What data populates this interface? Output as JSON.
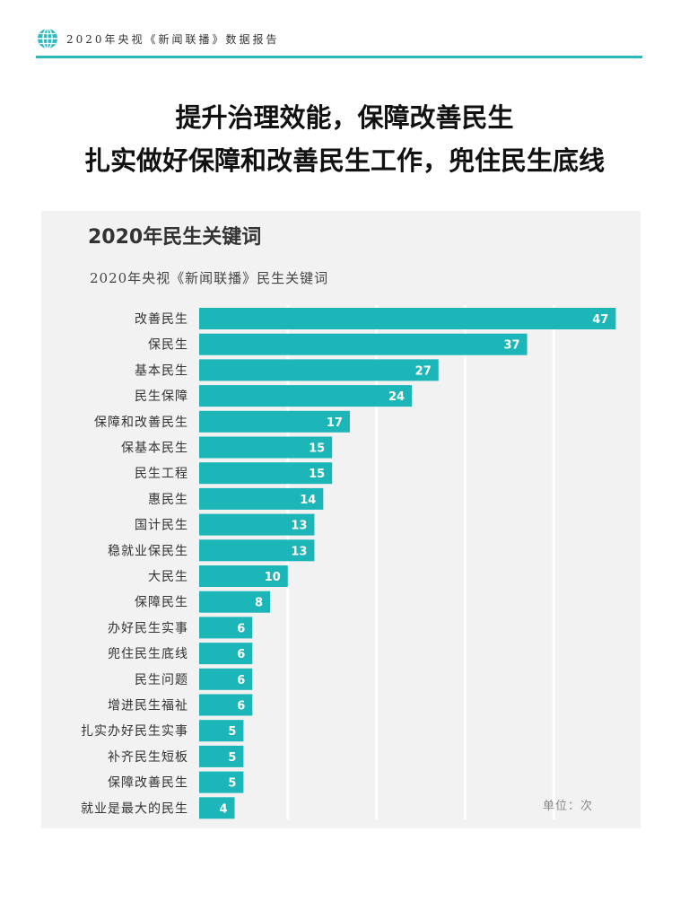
{
  "header": {
    "report_title": "2020年央视《新闻联播》数据报告",
    "icon": "globe-icon",
    "accent_color": "#2bb9be"
  },
  "headline": {
    "line1": "提升治理效能，保障改善民生",
    "line2": "扎实做好保障和改善民生工作，兜住民生底线"
  },
  "chart_data": {
    "type": "bar",
    "orientation": "horizontal",
    "title": "2020年民生关键词",
    "subtitle": "2020年央视《新闻联播》民生关键词",
    "categories": [
      "改善民生",
      "保民生",
      "基本民生",
      "民生保障",
      "保障和改善民生",
      "保基本民生",
      "民生工程",
      "惠民生",
      "国计民生",
      "稳就业保民生",
      "大民生",
      "保障民生",
      "办好民生实事",
      "兜住民生底线",
      "民生问题",
      "增进民生福祉",
      "扎实办好民生实事",
      "补齐民生短板",
      "保障改善民生",
      "就业是最大的民生"
    ],
    "values": [
      47,
      37,
      27,
      24,
      17,
      15,
      15,
      14,
      13,
      13,
      10,
      8,
      6,
      6,
      6,
      6,
      5,
      5,
      5,
      4
    ],
    "unit_label": "单位：次",
    "bar_color": "#1cb6b9",
    "xlim": [
      0,
      50
    ],
    "grid": true
  }
}
